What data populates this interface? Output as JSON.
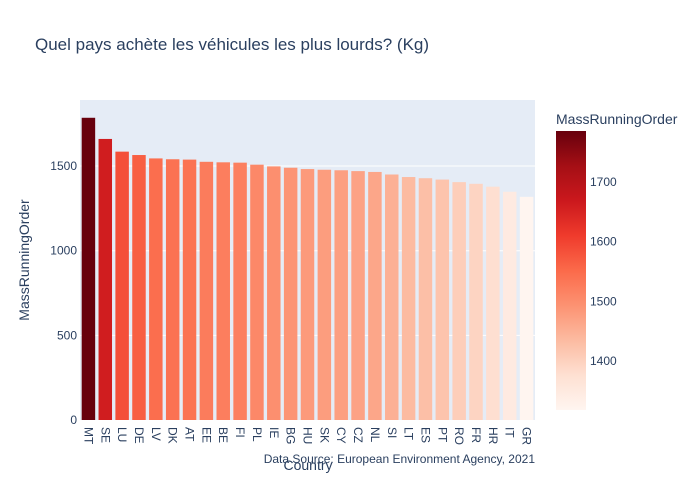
{
  "chart_data": {
    "type": "bar",
    "title": "Quel pays achète les véhicules les plus lourds? (Kg)",
    "xlabel": "Country",
    "ylabel": "MassRunningOrder",
    "categories": [
      "MT",
      "SE",
      "LU",
      "DE",
      "LV",
      "DK",
      "AT",
      "EE",
      "BE",
      "FI",
      "PL",
      "IE",
      "BG",
      "HU",
      "SK",
      "CY",
      "CZ",
      "NL",
      "SI",
      "LT",
      "ES",
      "PT",
      "RO",
      "FR",
      "HR",
      "IT",
      "GR"
    ],
    "values": [
      1785,
      1660,
      1585,
      1565,
      1545,
      1540,
      1538,
      1525,
      1522,
      1520,
      1508,
      1498,
      1490,
      1482,
      1478,
      1475,
      1470,
      1465,
      1450,
      1435,
      1428,
      1420,
      1405,
      1395,
      1378,
      1348,
      1318
    ],
    "ylim": [
      0,
      1890
    ],
    "yticks": [
      0,
      500,
      1000,
      1500
    ],
    "colorbar": {
      "title": "MassRunningOrder",
      "range": [
        1318,
        1785
      ],
      "ticks": [
        1400,
        1500,
        1600,
        1700
      ],
      "colorscale": [
        "#fff5f0",
        "#fee0d2",
        "#fcbba1",
        "#fc9272",
        "#fb6a4a",
        "#ef3b2c",
        "#cb181d",
        "#a50f15",
        "#67000d"
      ]
    },
    "source": "Data Source: European Environment Agency, 2021",
    "grid": true
  }
}
